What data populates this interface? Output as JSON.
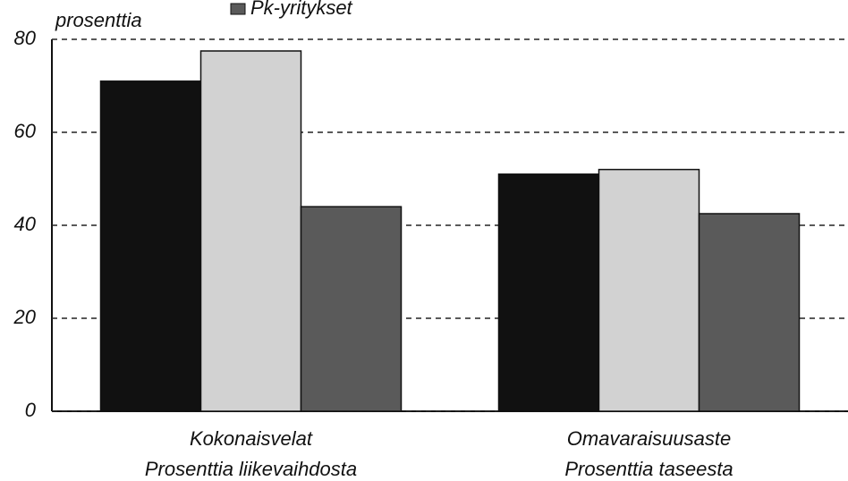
{
  "chart_data": {
    "type": "bar",
    "y_label": "prosenttia",
    "categories": [
      [
        "Kokonaisvelat",
        "Prosenttia liikevaihdosta"
      ],
      [
        "Omavaraisuusaste",
        "Prosenttia taseesta"
      ]
    ],
    "series": [
      {
        "color": "#111111",
        "values": [
          71,
          51
        ]
      },
      {
        "color": "#d2d2d2",
        "values": [
          77.5,
          52
        ]
      },
      {
        "name": "Pk-yritykset",
        "color": "#5a5a5a",
        "values": [
          44,
          42.5
        ]
      }
    ],
    "ylim": [
      0,
      80
    ],
    "yticks": [
      0,
      20,
      40,
      60,
      80
    ],
    "grid": true,
    "legend": "top"
  }
}
